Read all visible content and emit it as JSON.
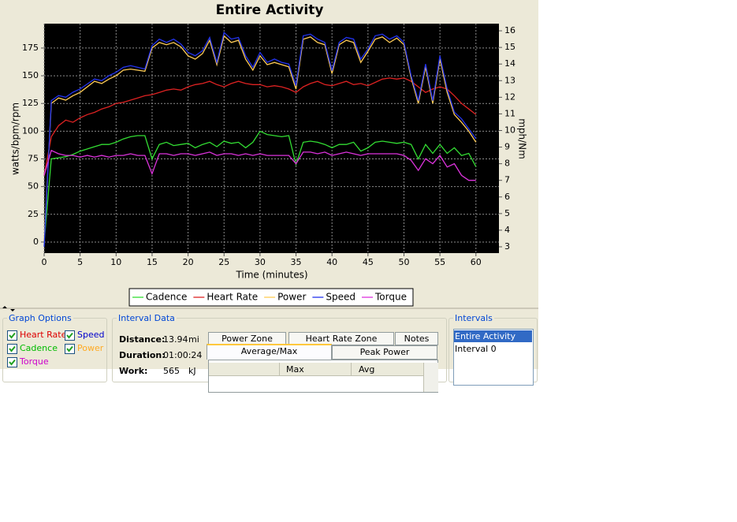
{
  "chart_data": {
    "type": "line",
    "title": "Entire Activity",
    "x_label": "Time (minutes)",
    "y_label": "watts/bpm/rpm",
    "y2_label": "mph/Nm",
    "x": [
      0,
      1,
      2,
      3,
      4,
      5,
      6,
      7,
      8,
      9,
      10,
      11,
      12,
      13,
      14,
      15,
      16,
      17,
      18,
      19,
      20,
      21,
      22,
      23,
      24,
      25,
      26,
      27,
      28,
      29,
      30,
      31,
      32,
      33,
      34,
      35,
      36,
      37,
      38,
      39,
      40,
      41,
      42,
      43,
      44,
      45,
      46,
      47,
      48,
      49,
      50,
      51,
      52,
      53,
      54,
      55,
      56,
      57,
      58,
      59,
      60
    ],
    "xlim": [
      0,
      63.2
    ],
    "xticks": [
      0,
      5,
      10,
      15,
      20,
      25,
      30,
      35,
      40,
      45,
      50,
      55,
      60
    ],
    "ylim": [
      -10,
      197
    ],
    "yticks": [
      0,
      25,
      50,
      75,
      100,
      125,
      150,
      175
    ],
    "y2lim": [
      2.62,
      16.43
    ],
    "y2ticks": [
      3,
      4,
      5,
      6,
      7,
      8,
      9,
      10,
      11,
      12,
      13,
      14,
      15,
      16
    ],
    "grid": true,
    "legend": "bottom",
    "series": [
      {
        "name": "Cadence",
        "color": "#33dd33",
        "axis": "y",
        "values": [
          0,
          75,
          76,
          77,
          79,
          82,
          84,
          86,
          88,
          88,
          90,
          93,
          95,
          96,
          96,
          75,
          88,
          90,
          87,
          88,
          89,
          85,
          88,
          90,
          86,
          91,
          89,
          90,
          85,
          90,
          100,
          97,
          96,
          95,
          96,
          70,
          90,
          91,
          90,
          88,
          85,
          88,
          88,
          90,
          82,
          85,
          90,
          91,
          90,
          89,
          90,
          88,
          75,
          88,
          80,
          88,
          80,
          85,
          78,
          80,
          68
        ]
      },
      {
        "name": "Heart Rate",
        "color": "#dd2222",
        "axis": "y",
        "values": [
          60,
          95,
          105,
          110,
          108,
          112,
          115,
          117,
          120,
          122,
          125,
          126,
          128,
          130,
          132,
          133,
          135,
          137,
          138,
          137,
          140,
          142,
          143,
          145,
          142,
          140,
          143,
          145,
          143,
          142,
          142,
          140,
          141,
          140,
          138,
          135,
          140,
          143,
          145,
          142,
          141,
          143,
          145,
          142,
          143,
          141,
          144,
          147,
          148,
          147,
          148,
          145,
          140,
          135,
          138,
          140,
          138,
          132,
          125,
          120,
          115
        ]
      },
      {
        "name": "Power",
        "color": "#ffcc55",
        "axis": "y",
        "values": [
          0,
          125,
          130,
          128,
          132,
          135,
          140,
          145,
          143,
          147,
          150,
          155,
          156,
          155,
          154,
          175,
          180,
          178,
          180,
          176,
          168,
          165,
          170,
          182,
          160,
          186,
          180,
          182,
          165,
          155,
          168,
          160,
          162,
          160,
          158,
          138,
          183,
          185,
          180,
          178,
          152,
          178,
          182,
          180,
          162,
          172,
          183,
          185,
          180,
          184,
          178,
          148,
          125,
          158,
          125,
          165,
          135,
          115,
          108,
          100,
          90
        ]
      },
      {
        "name": "Speed",
        "color": "#2233ee",
        "axis": "y2",
        "values": [
          3.0,
          11.8,
          12.1,
          12.0,
          12.3,
          12.5,
          12.8,
          13.1,
          13.0,
          13.3,
          13.5,
          13.8,
          13.9,
          13.8,
          13.7,
          15.1,
          15.5,
          15.3,
          15.5,
          15.2,
          14.7,
          14.5,
          14.8,
          15.6,
          14.1,
          15.9,
          15.5,
          15.6,
          14.5,
          13.8,
          14.7,
          14.1,
          14.3,
          14.1,
          14.0,
          12.7,
          15.7,
          15.8,
          15.5,
          15.3,
          13.6,
          15.3,
          15.6,
          15.5,
          14.3,
          14.9,
          15.7,
          15.8,
          15.5,
          15.7,
          15.3,
          13.3,
          11.8,
          14.0,
          11.8,
          14.5,
          12.5,
          11.1,
          10.7,
          10.1,
          9.5
        ]
      },
      {
        "name": "Torque",
        "color": "#dd33dd",
        "axis": "y2",
        "values": [
          7.3,
          8.8,
          8.6,
          8.5,
          8.5,
          8.4,
          8.5,
          8.4,
          8.5,
          8.4,
          8.5,
          8.5,
          8.6,
          8.5,
          8.5,
          7.4,
          8.6,
          8.6,
          8.5,
          8.6,
          8.6,
          8.5,
          8.6,
          8.7,
          8.5,
          8.6,
          8.6,
          8.5,
          8.6,
          8.5,
          8.6,
          8.5,
          8.5,
          8.5,
          8.5,
          8.0,
          8.7,
          8.7,
          8.6,
          8.7,
          8.5,
          8.6,
          8.7,
          8.6,
          8.5,
          8.6,
          8.6,
          8.6,
          8.6,
          8.6,
          8.5,
          8.2,
          7.6,
          8.3,
          8.0,
          8.5,
          7.8,
          8.0,
          7.3,
          7.0,
          7.0
        ]
      }
    ]
  },
  "graph_options": {
    "title": "Graph Options",
    "items": [
      {
        "label": "Heart Rate",
        "checked": true,
        "color": "#dd0000"
      },
      {
        "label": "Speed",
        "checked": true,
        "color": "#0000cc"
      },
      {
        "label": "Cadence",
        "checked": true,
        "color": "#00bb00"
      },
      {
        "label": "Power",
        "checked": true,
        "color": "#ffaa22"
      },
      {
        "label": "Torque",
        "checked": true,
        "color": "#cc00cc"
      }
    ]
  },
  "interval_data": {
    "title": "Interval Data",
    "fields": [
      {
        "label": "Distance:",
        "value": "13.94",
        "unit": "mi"
      },
      {
        "label": "Duration:",
        "value": "01:00:24"
      },
      {
        "label": "Work:",
        "value": "565",
        "unit": "kJ"
      }
    ],
    "tabs": [
      "Power Zone",
      "Heart Rate Zone",
      "Notes"
    ],
    "subtabs": [
      "Average/Max",
      "Peak Power"
    ],
    "columns": [
      "Max",
      "Avg"
    ]
  },
  "intervals": {
    "title": "Intervals",
    "items": [
      "Entire Activity",
      "Interval 0"
    ],
    "selected": 0
  }
}
